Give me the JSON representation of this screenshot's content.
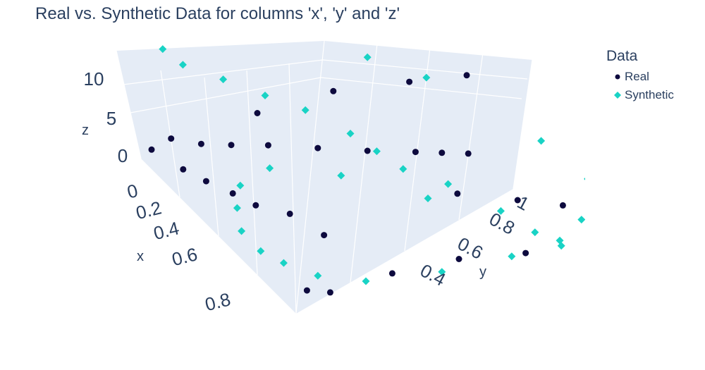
{
  "chart_data": {
    "type": "scatter",
    "title": "Real vs. Synthetic Data for columns 'x', 'y' and 'z'",
    "axes": {
      "x": {
        "label": "x",
        "tick_labels": [
          "0",
          "0.2",
          "0.4",
          "0.6",
          "0.8"
        ],
        "range": [
          0,
          1
        ]
      },
      "y": {
        "label": "y",
        "tick_labels": [
          "0.4",
          "0.6",
          "0.8",
          "1"
        ],
        "range": [
          0,
          1
        ]
      },
      "z": {
        "label": "z",
        "tick_labels": [
          "0",
          "5",
          "10"
        ],
        "range": [
          -3,
          12
        ]
      }
    },
    "legend": {
      "title": "Data",
      "placement": "top-right"
    },
    "series": [
      {
        "name": "Real",
        "symbol": "circle",
        "color": "#0d0a3e",
        "points": [
          [
            0.02,
            0.02,
            -1.5
          ],
          [
            0.05,
            0.06,
            0.5
          ],
          [
            0.1,
            0.12,
            1.0
          ],
          [
            0.15,
            0.18,
            2.0
          ],
          [
            0.22,
            0.25,
            3.5
          ],
          [
            0.3,
            0.35,
            5.0
          ],
          [
            0.38,
            0.45,
            6.5
          ],
          [
            0.45,
            0.55,
            8.0
          ],
          [
            0.5,
            0.6,
            9.0
          ],
          [
            0.55,
            0.65,
            10.0
          ],
          [
            0.03,
            0.3,
            4.0
          ],
          [
            0.04,
            0.5,
            7.5
          ],
          [
            0.05,
            0.7,
            9.5
          ],
          [
            0.06,
            0.85,
            11.0
          ],
          [
            0.97,
            0.95,
            11.5
          ],
          [
            0.9,
            0.9,
            10.5
          ],
          [
            0.8,
            0.8,
            9.0
          ],
          [
            0.7,
            0.72,
            7.5
          ],
          [
            0.6,
            0.6,
            6.0
          ],
          [
            0.98,
            0.1,
            -0.5
          ],
          [
            0.95,
            0.05,
            -1.0
          ],
          [
            0.9,
            0.3,
            1.0
          ],
          [
            0.85,
            0.5,
            2.5
          ],
          [
            0.8,
            0.7,
            3.0
          ],
          [
            0.7,
            0.2,
            1.5
          ],
          [
            0.6,
            0.15,
            2.0
          ],
          [
            0.5,
            0.1,
            1.0
          ],
          [
            0.4,
            0.08,
            0.5
          ],
          [
            0.3,
            0.05,
            0.0
          ],
          [
            0.2,
            0.03,
            -0.5
          ]
        ]
      },
      {
        "name": "Synthetic",
        "symbol": "diamond",
        "color": "#19d3c5",
        "points": [
          [
            0.02,
            0.05,
            10.5
          ],
          [
            0.03,
            0.1,
            9.0
          ],
          [
            0.05,
            0.2,
            8.0
          ],
          [
            0.08,
            0.3,
            7.0
          ],
          [
            0.1,
            0.4,
            6.0
          ],
          [
            0.15,
            0.5,
            4.5
          ],
          [
            0.2,
            0.55,
            3.5
          ],
          [
            0.25,
            0.6,
            2.5
          ],
          [
            0.3,
            0.7,
            2.0
          ],
          [
            0.4,
            0.8,
            1.0
          ],
          [
            0.5,
            0.85,
            0.5
          ],
          [
            0.55,
            0.9,
            0.0
          ],
          [
            0.02,
            0.6,
            11.5
          ],
          [
            0.04,
            0.75,
            10.0
          ],
          [
            0.3,
            0.95,
            8.0
          ],
          [
            0.6,
            0.95,
            9.0
          ],
          [
            0.8,
            0.85,
            7.5
          ],
          [
            0.9,
            0.75,
            6.5
          ],
          [
            0.95,
            0.6,
            5.0
          ],
          [
            0.98,
            0.4,
            3.0
          ],
          [
            0.97,
            0.2,
            1.0
          ],
          [
            0.9,
            0.1,
            0.0
          ],
          [
            0.8,
            0.05,
            -0.5
          ],
          [
            0.7,
            0.03,
            -1.0
          ],
          [
            0.6,
            0.02,
            -0.5
          ],
          [
            0.5,
            0.05,
            0.5
          ],
          [
            0.4,
            0.1,
            1.5
          ],
          [
            0.35,
            0.2,
            3.0
          ],
          [
            0.45,
            0.35,
            4.5
          ],
          [
            0.65,
            0.5,
            6.0
          ]
        ]
      }
    ]
  }
}
